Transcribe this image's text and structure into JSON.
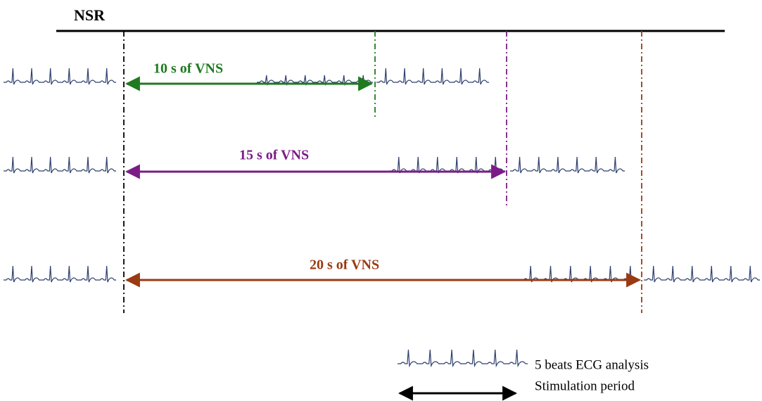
{
  "header": {
    "title": "NSR"
  },
  "protocols": [
    {
      "label": "10 s of VNS"
    },
    {
      "label": "15 s of VNS"
    },
    {
      "label": "20 s of VNS"
    }
  ],
  "legend": {
    "ecg": "5 beats ECG analysis",
    "stimulation": "Stimulation period"
  }
}
